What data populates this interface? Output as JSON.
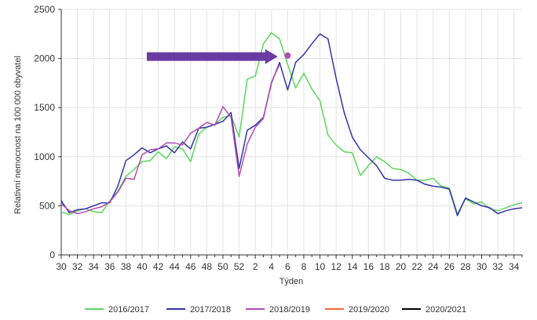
{
  "chart_data": {
    "type": "line",
    "xlabel": "Týden",
    "ylabel": "Relativní nemocnost na 100 000 obyvatel",
    "ylim": [
      0,
      2500
    ],
    "yticks": [
      0,
      500,
      1000,
      1500,
      2000,
      2500
    ],
    "weeks": [
      "30",
      "31",
      "32",
      "33",
      "34",
      "35",
      "36",
      "37",
      "38",
      "39",
      "40",
      "41",
      "42",
      "43",
      "44",
      "45",
      "46",
      "47",
      "48",
      "49",
      "50",
      "51",
      "52",
      "1",
      "2",
      "3",
      "4",
      "5",
      "6",
      "7",
      "8",
      "9",
      "10",
      "11",
      "12",
      "13",
      "14",
      "15",
      "16",
      "17",
      "18",
      "19",
      "20",
      "21",
      "22",
      "23",
      "24",
      "25",
      "26",
      "27",
      "28",
      "29",
      "30",
      "31",
      "32",
      "33",
      "34",
      "35"
    ],
    "xtick_labels": [
      "30",
      "32",
      "34",
      "36",
      "38",
      "40",
      "42",
      "44",
      "46",
      "48",
      "50",
      "52",
      "2",
      "4",
      "6",
      "8",
      "10",
      "12",
      "14",
      "16",
      "18",
      "20",
      "22",
      "24",
      "26",
      "28",
      "30",
      "32",
      "34"
    ],
    "grid": true,
    "legend_position": "bottom",
    "series": [
      {
        "name": "2016/2017",
        "color": "#5cd65c",
        "values": [
          440,
          410,
          450,
          470,
          440,
          430,
          550,
          650,
          800,
          870,
          950,
          960,
          1050,
          980,
          1100,
          1080,
          950,
          1230,
          1300,
          1330,
          1400,
          1420,
          1200,
          1790,
          1820,
          2150,
          2260,
          2200,
          1940,
          1700,
          1850,
          1690,
          1570,
          1220,
          1120,
          1050,
          1040,
          810,
          910,
          1000,
          950,
          880,
          870,
          830,
          760,
          760,
          780,
          700,
          680,
          420,
          570,
          520,
          540,
          470,
          450,
          480,
          510,
          530
        ]
      },
      {
        "name": "2017/2018",
        "color": "#3333aa",
        "values": [
          550,
          430,
          460,
          470,
          500,
          530,
          530,
          700,
          960,
          1020,
          1090,
          1040,
          1080,
          1110,
          1040,
          1150,
          1080,
          1290,
          1300,
          1330,
          1360,
          1450,
          880,
          1270,
          1320,
          1400,
          1750,
          1960,
          1680,
          1960,
          2040,
          2150,
          2250,
          2200,
          1800,
          1450,
          1200,
          1070,
          990,
          910,
          780,
          760,
          760,
          770,
          760,
          720,
          700,
          690,
          670,
          400,
          580,
          540,
          500,
          480,
          420,
          450,
          470,
          480
        ]
      },
      {
        "name": "2018/2019",
        "color": "#b34db3",
        "values": [
          520,
          450,
          420,
          440,
          470,
          490,
          540,
          640,
          780,
          770,
          1020,
          1070,
          1080,
          1140,
          1140,
          1120,
          1240,
          1290,
          1350,
          1320,
          1510,
          1400,
          800,
          1130,
          1300,
          1390,
          1760,
          1940
        ]
      },
      {
        "name": "2019/2020",
        "color": "#ff6633",
        "values": []
      },
      {
        "name": "2020/2021",
        "color": "#000000",
        "values": []
      }
    ],
    "annotations": [
      {
        "type": "arrow",
        "from_week": "40",
        "to_week": "4",
        "y": 2020,
        "color": "#6a3ca3"
      },
      {
        "type": "marker",
        "week": "6",
        "y": 2030,
        "color": "#b34db3"
      }
    ]
  }
}
